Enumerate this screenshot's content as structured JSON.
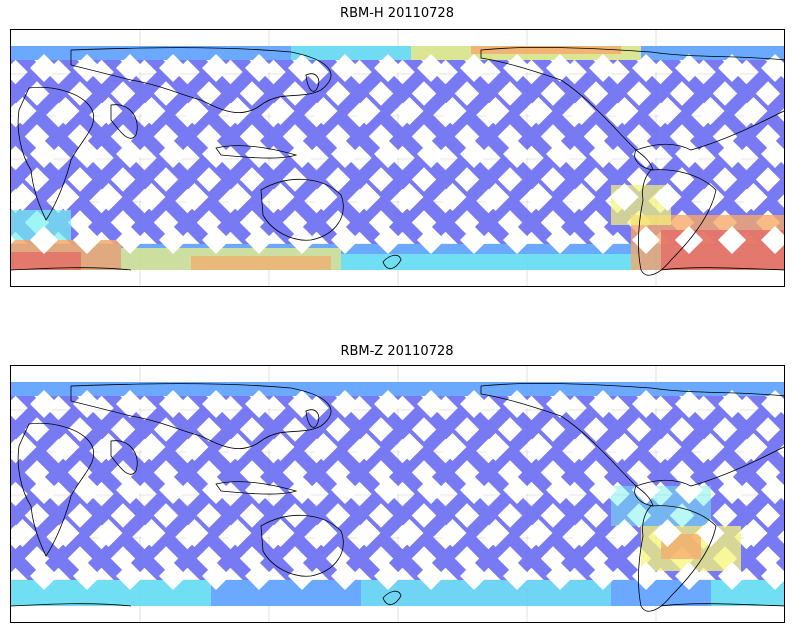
{
  "panels": [
    {
      "title": "RBM-H 20110728"
    },
    {
      "title": "RBM-Z 20110728"
    }
  ],
  "colors": {
    "low": "#6a6cf2",
    "mid_low": "#5aa0ff",
    "cyan": "#66f0ee",
    "yellow": "#f5f56a",
    "orange": "#f5a05a",
    "red": "#e0605a",
    "coastline": "#000000",
    "grid": "#cccccc"
  },
  "map": {
    "projection": "cylindrical, centered on Pacific",
    "gridlines": true,
    "coastlines": true
  }
}
